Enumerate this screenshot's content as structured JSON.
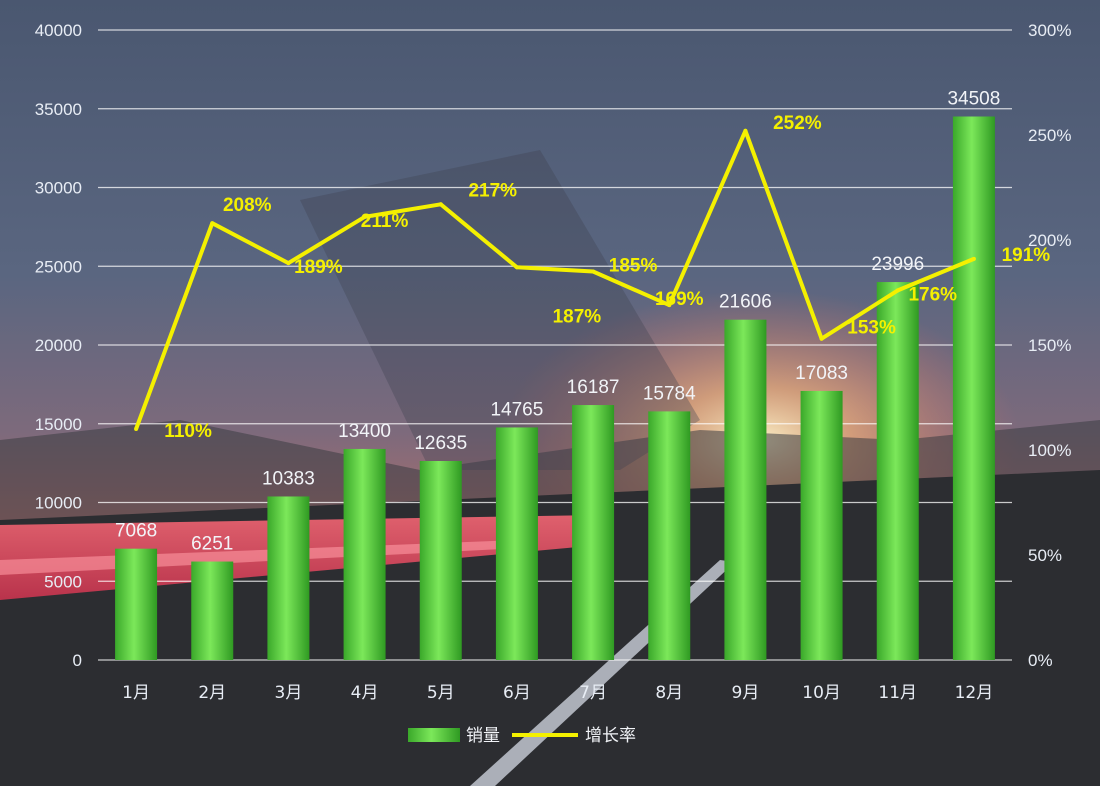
{
  "chart_data": {
    "type": "bar",
    "categories": [
      "1月",
      "2月",
      "3月",
      "4月",
      "5月",
      "6月",
      "7月",
      "8月",
      "9月",
      "10月",
      "11月",
      "12月"
    ],
    "series": [
      {
        "name": "销量",
        "type": "bar",
        "axis": "left",
        "color": "#5fd33a",
        "values": [
          7068,
          6251,
          10383,
          13400,
          12635,
          14765,
          16187,
          15784,
          21606,
          17083,
          23996,
          34508
        ],
        "labels": [
          "7068",
          "6251",
          "10383",
          "13400",
          "12635",
          "14765",
          "16187",
          "15784",
          "21606",
          "17083",
          "23996",
          "34508"
        ]
      },
      {
        "name": "增长率",
        "type": "line",
        "axis": "right",
        "color": "#f4f000",
        "values": [
          110,
          208,
          189,
          211,
          217,
          187,
          185,
          169,
          252,
          153,
          176,
          191
        ],
        "labels": [
          "110%",
          "208%",
          "189%",
          "211%",
          "217%",
          "187%",
          "185%",
          "169%",
          "252%",
          "153%",
          "176%",
          "191%"
        ]
      }
    ],
    "y_left": {
      "min": 0,
      "max": 40000,
      "ticks": [
        "0",
        "5000",
        "10000",
        "15000",
        "20000",
        "25000",
        "30000",
        "35000",
        "40000"
      ]
    },
    "y_right": {
      "min": 0,
      "max": 300,
      "ticks": [
        "0%",
        "50%",
        "100%",
        "150%",
        "200%",
        "250%",
        "300%"
      ]
    },
    "title": "",
    "xlabel": "",
    "ylabel": "",
    "grid": true,
    "legend_position": "bottom"
  },
  "legend": {
    "items": [
      "销量",
      "增长率"
    ]
  },
  "colors": {
    "bar": "#5fd33a",
    "line": "#f4f000",
    "grid": "#ffffff",
    "background_sky": "#3b4660",
    "sunset": "#f08060"
  }
}
